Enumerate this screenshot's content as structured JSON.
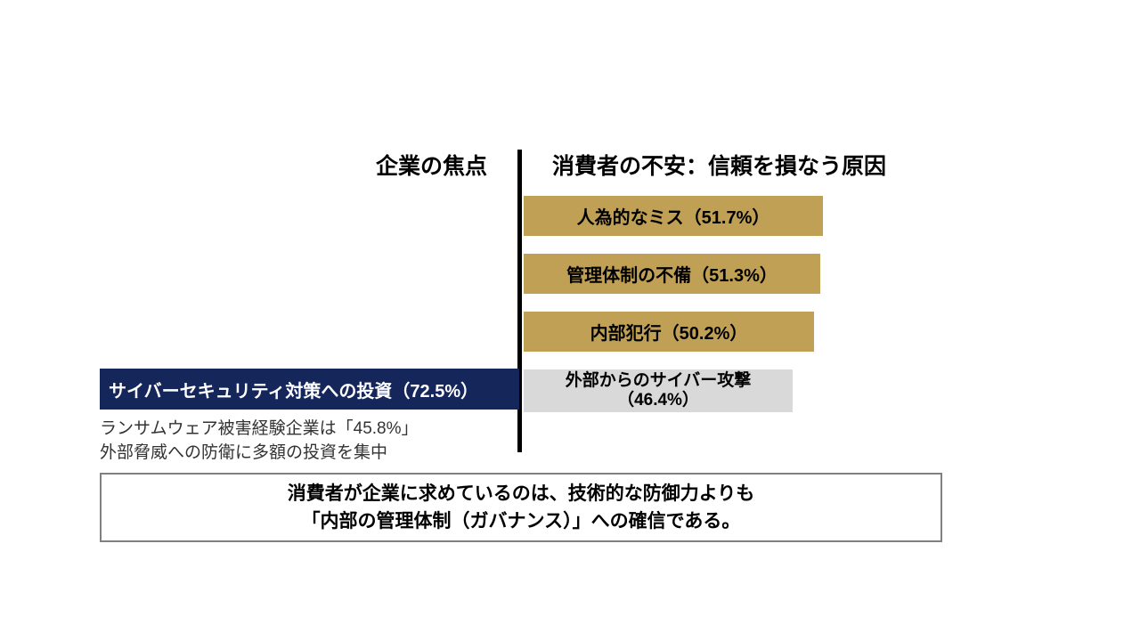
{
  "slide": {
    "left_header": "企業の焦点",
    "right_header": "消費者の不安：信頼を損なう原因"
  },
  "chart_data": {
    "type": "bar",
    "orientation": "horizontal-diverging",
    "unit": "%",
    "axis_divider": "vertical black line separating left and right series",
    "left_series": {
      "name": "企業の焦点",
      "bars": [
        {
          "label": "サイバーセキュリティ対策への投資",
          "value": 72.5,
          "display": "サイバーセキュリティ対策への投資（72.5%）",
          "color": "#15265b",
          "text_color": "#ffffff"
        }
      ]
    },
    "right_series": {
      "name": "消費者の不安：信頼を損なう原因",
      "bars": [
        {
          "label": "人為的なミス",
          "value": 51.7,
          "display": "人為的なミス（51.7%）",
          "color": "#bfa054",
          "text_color": "#000000"
        },
        {
          "label": "管理体制の不備",
          "value": 51.3,
          "display": "管理体制の不備（51.3%）",
          "color": "#bfa054",
          "text_color": "#000000"
        },
        {
          "label": "内部犯行",
          "value": 50.2,
          "display": "内部犯行（50.2%）",
          "color": "#bfa054",
          "text_color": "#000000"
        },
        {
          "label": "外部からのサイバー攻撃",
          "value": 46.4,
          "display_line1": "外部からのサイバー攻撃",
          "display_line2": "（46.4%）",
          "color": "#d9d9d9",
          "text_color": "#000000"
        }
      ]
    }
  },
  "note": {
    "line1": "ランサムウェア被害経験企業は「45.8%」",
    "line2": "外部脅威への防衛に多額の投資を集中"
  },
  "conclusion": {
    "line1": "消費者が企業に求めているのは、技術的な防御力よりも",
    "line2": "「内部の管理体制（ガバナンス）」への確信である。"
  },
  "colors": {
    "gold": "#bfa054",
    "navy": "#15265b",
    "gray_bar": "#d9d9d9",
    "divider": "#000000",
    "box_border": "#808080"
  }
}
